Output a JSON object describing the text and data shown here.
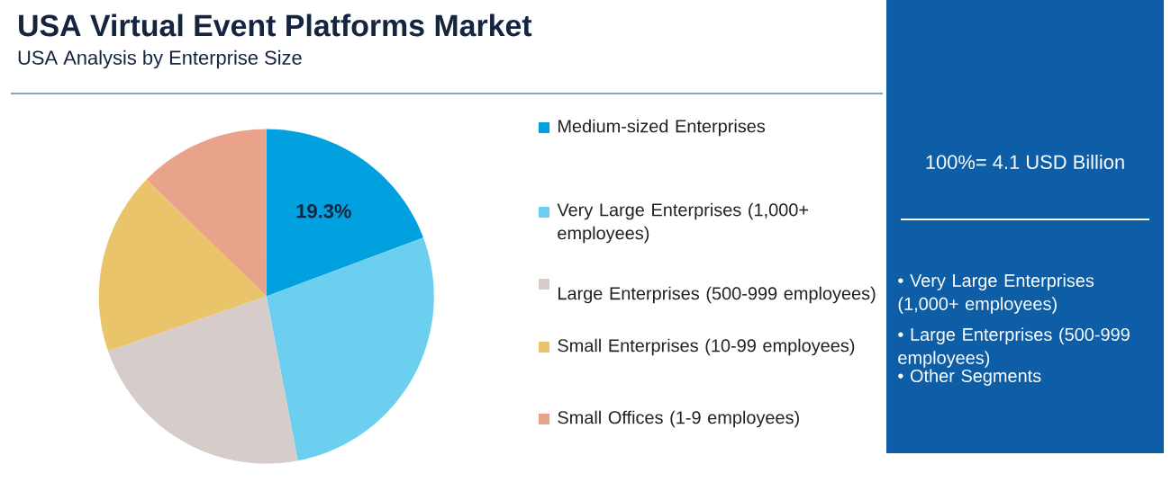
{
  "chart_data": {
    "type": "pie",
    "title": "USA Virtual Event Platforms Market",
    "subtitle": "USA Analysis by Enterprise Size",
    "categories": [
      "Medium-sized Enterprises",
      "Very Large Enterprises (1,000+ employees)",
      "Large Enterprises (500-999 employees)",
      "Small Enterprises (10-99 employees)",
      "Small Offices (1-9 employees)"
    ],
    "values": [
      19.3,
      27.7,
      22.7,
      17.6,
      12.7
    ],
    "colors": [
      "#00a1de",
      "#6dcff0",
      "#d6cdcb",
      "#e9c46a",
      "#e9a38a"
    ],
    "value_labels": [
      "19.3%",
      null,
      null,
      null,
      null
    ],
    "legend": "right",
    "annotations": [
      "100%= 4.1 USD Billion",
      "• Very Large Enterprises (1,000+ employees)",
      "• Large Enterprises (500-999 employees)",
      "• Other Segments"
    ]
  }
}
